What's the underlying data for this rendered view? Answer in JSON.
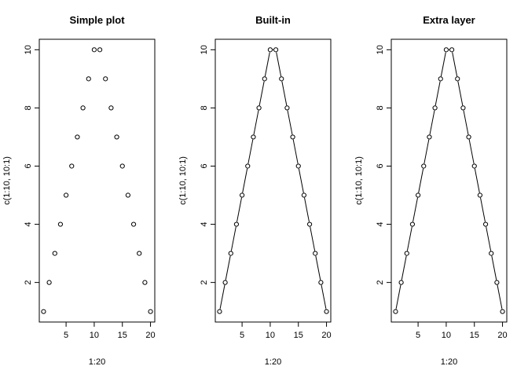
{
  "chart_data": [
    {
      "type": "scatter",
      "title": "Simple plot",
      "xlabel": "1:20",
      "ylabel": "c(1:10, 10:1)",
      "x": [
        1,
        2,
        3,
        4,
        5,
        6,
        7,
        8,
        9,
        10,
        11,
        12,
        13,
        14,
        15,
        16,
        17,
        18,
        19,
        20
      ],
      "y": [
        1,
        2,
        3,
        4,
        5,
        6,
        7,
        8,
        9,
        10,
        10,
        9,
        8,
        7,
        6,
        5,
        4,
        3,
        2,
        1
      ],
      "xlim": [
        0.24,
        20.76
      ],
      "ylim": [
        0.64,
        10.36
      ],
      "xticks": [
        5,
        10,
        15,
        20
      ],
      "yticks": [
        2,
        4,
        6,
        8,
        10
      ],
      "line": false,
      "grid": false
    },
    {
      "type": "line",
      "title": "Built-in",
      "xlabel": "1:20",
      "ylabel": "c(1:10, 10:1)",
      "x": [
        1,
        2,
        3,
        4,
        5,
        6,
        7,
        8,
        9,
        10,
        11,
        12,
        13,
        14,
        15,
        16,
        17,
        18,
        19,
        20
      ],
      "y": [
        1,
        2,
        3,
        4,
        5,
        6,
        7,
        8,
        9,
        10,
        10,
        9,
        8,
        7,
        6,
        5,
        4,
        3,
        2,
        1
      ],
      "xlim": [
        0.24,
        20.76
      ],
      "ylim": [
        0.64,
        10.36
      ],
      "xticks": [
        5,
        10,
        15,
        20
      ],
      "yticks": [
        2,
        4,
        6,
        8,
        10
      ],
      "line": true,
      "grid": false
    },
    {
      "type": "line",
      "title": "Extra layer",
      "xlabel": "1:20",
      "ylabel": "c(1:10, 10:1)",
      "x": [
        1,
        2,
        3,
        4,
        5,
        6,
        7,
        8,
        9,
        10,
        11,
        12,
        13,
        14,
        15,
        16,
        17,
        18,
        19,
        20
      ],
      "y": [
        1,
        2,
        3,
        4,
        5,
        6,
        7,
        8,
        9,
        10,
        10,
        9,
        8,
        7,
        6,
        5,
        4,
        3,
        2,
        1
      ],
      "xlim": [
        0.24,
        20.76
      ],
      "ylim": [
        0.64,
        10.36
      ],
      "xticks": [
        5,
        10,
        15,
        20
      ],
      "yticks": [
        2,
        4,
        6,
        8,
        10
      ],
      "line": true,
      "grid": false
    }
  ]
}
